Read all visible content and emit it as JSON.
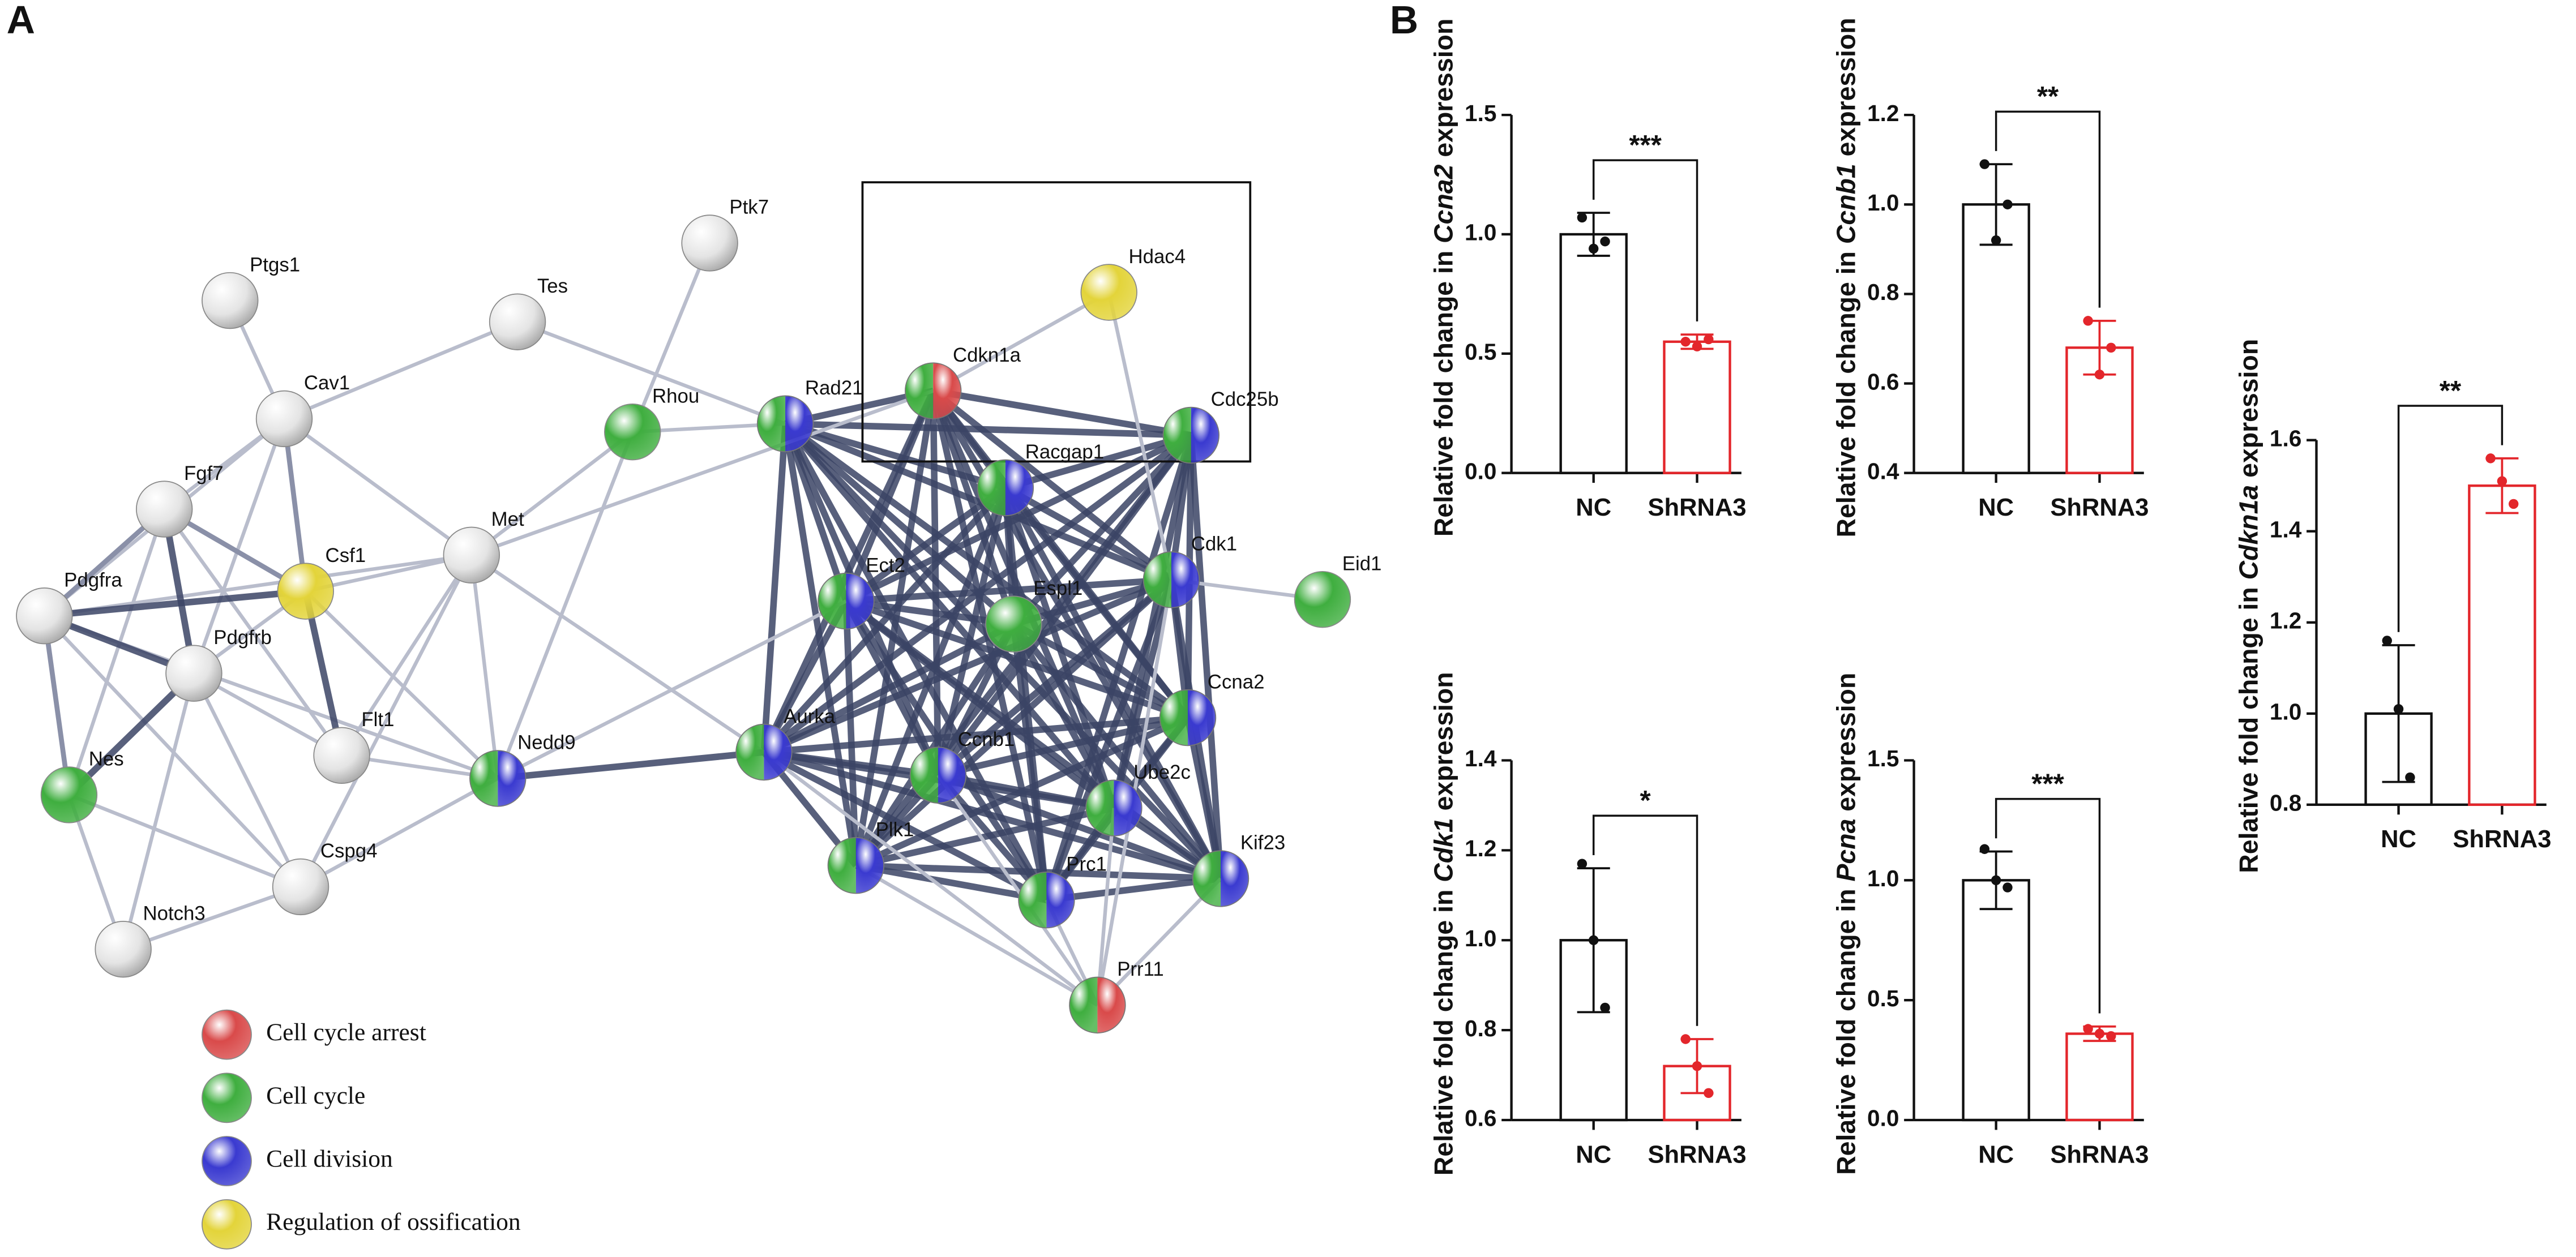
{
  "panels": {
    "a": "A",
    "b": "B"
  },
  "network": {
    "nodes": [
      "Ptgs1",
      "Tes",
      "Ptk7",
      "Hdac4",
      "Cav1",
      "Rhou",
      "Rad21",
      "Cdkn1a",
      "Cdc25b",
      "Fgf7",
      "Racgap1",
      "Met",
      "Csf1",
      "Pdgfra",
      "Ect2",
      "Espl1",
      "Cdk1",
      "Eid1",
      "Pdgfrb",
      "Flt1",
      "Aurka",
      "Ccnb1",
      "Ccna2",
      "Nes",
      "Nedd9",
      "Ube2c",
      "Kif23",
      "Plk1",
      "Prc1",
      "Cspg4",
      "Notch3",
      "Prr11"
    ],
    "legend": [
      {
        "label": "Cell cycle arrest",
        "color": "#d94a4a"
      },
      {
        "label": "Cell cycle",
        "color": "#3fae3f"
      },
      {
        "label": "Cell division",
        "color": "#3a3ad0"
      },
      {
        "label": "Regulation of ossification",
        "color": "#e3d43a"
      }
    ]
  },
  "chart_data": [
    {
      "type": "bar",
      "ylabel": [
        "Relative fold change in ",
        "Ccna2",
        " expression"
      ],
      "categories": [
        "NC",
        "ShRNA3"
      ],
      "colors": [
        "#111111",
        "#e3262b"
      ],
      "values": [
        1.0,
        0.55
      ],
      "errors": [
        0.09,
        0.03
      ],
      "points": [
        [
          1.07,
          0.94,
          0.97
        ],
        [
          0.55,
          0.53,
          0.56
        ]
      ],
      "annotation": "***",
      "ylim": [
        0,
        1.5
      ],
      "yticks": [
        {
          "value": 0,
          "label": "0.0"
        },
        0.5,
        {
          "value": 1,
          "label": "1.0"
        },
        1.5
      ]
    },
    {
      "type": "bar",
      "ylabel": [
        "Relative fold change in ",
        "Ccnb1",
        " expression"
      ],
      "categories": [
        "NC",
        "ShRNA3"
      ],
      "colors": [
        "#111111",
        "#e3262b"
      ],
      "values": [
        1.0,
        0.68
      ],
      "errors": [
        0.09,
        0.06
      ],
      "points": [
        [
          1.09,
          0.92,
          1.0
        ],
        [
          0.74,
          0.62,
          0.68
        ]
      ],
      "annotation": "**",
      "ylim": [
        0.4,
        1.2
      ],
      "yticks": [
        0.4,
        0.6,
        0.8,
        {
          "value": 1,
          "label": "1.0"
        },
        1.2
      ]
    },
    {
      "type": "bar",
      "ylabel": [
        "Relative fold change in ",
        "Cdk1",
        " expression"
      ],
      "categories": [
        "NC",
        "ShRNA3"
      ],
      "colors": [
        "#111111",
        "#e3262b"
      ],
      "values": [
        1.0,
        0.72
      ],
      "errors": [
        0.16,
        0.06
      ],
      "points": [
        [
          1.17,
          1.0,
          0.85
        ],
        [
          0.78,
          0.72,
          0.66
        ]
      ],
      "annotation": "*",
      "ylim": [
        0.6,
        1.4
      ],
      "yticks": [
        0.6,
        0.8,
        {
          "value": 1,
          "label": "1.0"
        },
        1.2,
        1.4
      ]
    },
    {
      "type": "bar",
      "ylabel": [
        "Relative fold change in ",
        "Pcna",
        " expression"
      ],
      "categories": [
        "NC",
        "ShRNA3"
      ],
      "colors": [
        "#111111",
        "#e3262b"
      ],
      "values": [
        1.0,
        0.36
      ],
      "errors": [
        0.12,
        0.03
      ],
      "points": [
        [
          1.13,
          1.0,
          0.97
        ],
        [
          0.38,
          0.36,
          0.35
        ]
      ],
      "annotation": "***",
      "ylim": [
        0,
        1.5
      ],
      "yticks": [
        {
          "value": 0,
          "label": "0.0"
        },
        0.5,
        {
          "value": 1,
          "label": "1.0"
        },
        1.5
      ]
    },
    {
      "type": "bar",
      "ylabel": [
        "Relative fold change in ",
        "Cdkn1a",
        " expression"
      ],
      "categories": [
        "NC",
        "ShRNA3"
      ],
      "colors": [
        "#111111",
        "#e3262b"
      ],
      "values": [
        1.0,
        1.5
      ],
      "errors": [
        0.15,
        0.06
      ],
      "points": [
        [
          1.16,
          1.01,
          0.86
        ],
        [
          1.56,
          1.51,
          1.46
        ]
      ],
      "annotation": "**",
      "ylim": [
        0.8,
        1.6
      ],
      "yticks": [
        0.8,
        {
          "value": 1,
          "label": "1.0"
        },
        1.2,
        1.4,
        1.6
      ]
    }
  ]
}
